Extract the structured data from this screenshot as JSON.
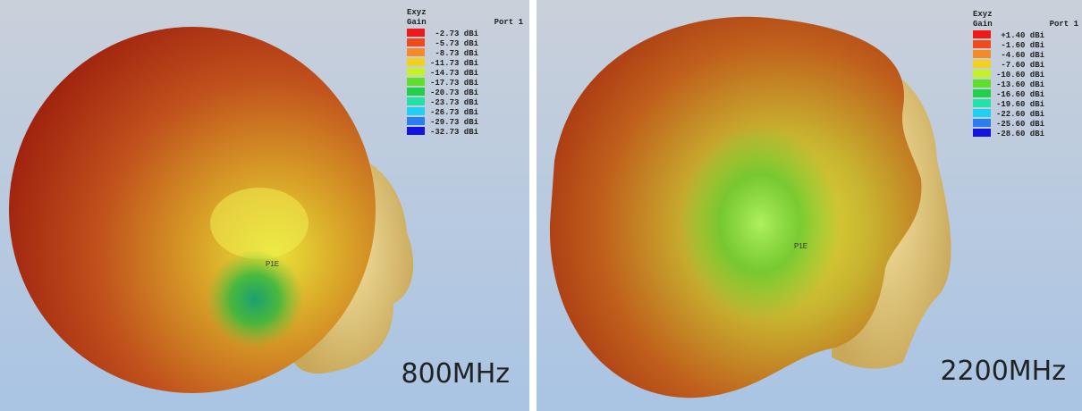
{
  "panels": [
    {
      "legend": {
        "title": "Exyz",
        "quantity": "Gain",
        "port": "Port 1",
        "items": [
          {
            "label": "-2.73 dBi",
            "color": "#f01818"
          },
          {
            "label": "-5.73 dBi",
            "color": "#f04a1c"
          },
          {
            "label": "-8.73 dBi",
            "color": "#f58a28"
          },
          {
            "label": "-11.73 dBi",
            "color": "#f2d020"
          },
          {
            "label": "-14.73 dBi",
            "color": "#c4f02c"
          },
          {
            "label": "-17.73 dBi",
            "color": "#5ee02a"
          },
          {
            "label": "-20.73 dBi",
            "color": "#20d048"
          },
          {
            "label": "-23.73 dBi",
            "color": "#22e2a8"
          },
          {
            "label": "-26.73 dBi",
            "color": "#20d0f2"
          },
          {
            "label": "-29.73 dBi",
            "color": "#2a7ef0"
          },
          {
            "label": "-32.73 dBi",
            "color": "#1414e0"
          }
        ]
      },
      "marker": "P1E",
      "frequency": "800MHz"
    },
    {
      "legend": {
        "title": "Exyz",
        "quantity": "Gain",
        "port": "Port 1",
        "items": [
          {
            "label": "+1.40 dBi",
            "color": "#f01818"
          },
          {
            "label": "-1.60 dBi",
            "color": "#f04a1c"
          },
          {
            "label": "-4.60 dBi",
            "color": "#f58a28"
          },
          {
            "label": "-7.60 dBi",
            "color": "#f2d020"
          },
          {
            "label": "-10.60 dBi",
            "color": "#c4f02c"
          },
          {
            "label": "-13.60 dBi",
            "color": "#5ee02a"
          },
          {
            "label": "-16.60 dBi",
            "color": "#20d048"
          },
          {
            "label": "-19.60 dBi",
            "color": "#22e2a8"
          },
          {
            "label": "-22.60 dBi",
            "color": "#20d0f2"
          },
          {
            "label": "-25.60 dBi",
            "color": "#2a7ef0"
          },
          {
            "label": "-28.60 dBi",
            "color": "#1414e0"
          }
        ]
      },
      "marker": "P1E",
      "frequency": "2200MHz"
    }
  ]
}
